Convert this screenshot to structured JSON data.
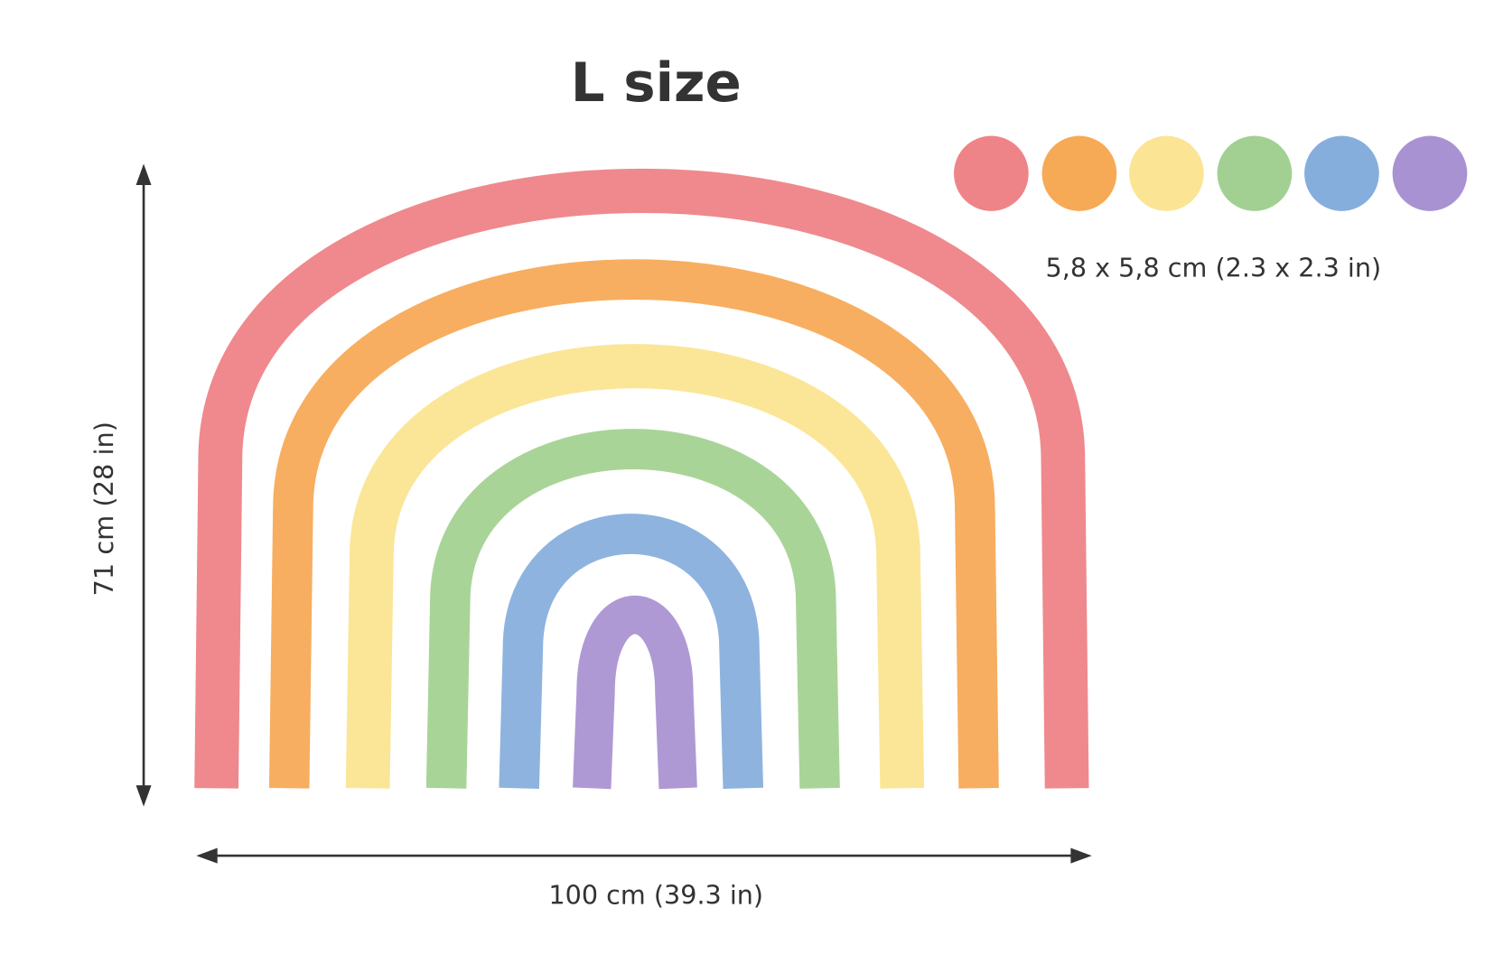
{
  "title": "L size",
  "height_label": "71 cm (28 in)",
  "width_label": "100 cm (39.3 in)",
  "dot_label": "5,8 x 5,8 cm (2.3 x 2.3 in)"
}
